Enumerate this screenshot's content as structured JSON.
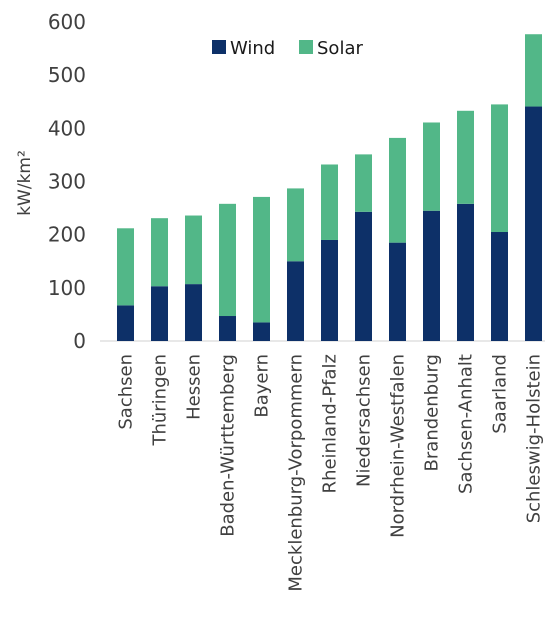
{
  "chart_data": {
    "type": "bar",
    "stacked": true,
    "ylabel": "kW/km²",
    "ylim": [
      0,
      600
    ],
    "yticks": [
      0,
      100,
      200,
      300,
      400,
      500,
      600
    ],
    "gridlines": false,
    "legend_position": "top-left",
    "categories": [
      "Sachsen",
      "Thüringen",
      "Hessen",
      "Baden-Württemberg",
      "Bayern",
      "Mecklenburg-Vorpommern",
      "Rheinland-Pfalz",
      "Niedersachsen",
      "Nordrhein-Westfalen",
      "Brandenburg",
      "Sachsen-Anhalt",
      "Saarland",
      "Schleswig-Holstein"
    ],
    "series": [
      {
        "name": "Wind",
        "color": "#0d3068",
        "values": [
          67,
          103,
          107,
          47,
          35,
          150,
          190,
          243,
          185,
          245,
          258,
          205,
          441
        ]
      },
      {
        "name": "Solar",
        "color": "#52b788",
        "values": [
          145,
          128,
          129,
          211,
          236,
          137,
          142,
          108,
          197,
          166,
          175,
          240,
          136
        ]
      }
    ]
  }
}
